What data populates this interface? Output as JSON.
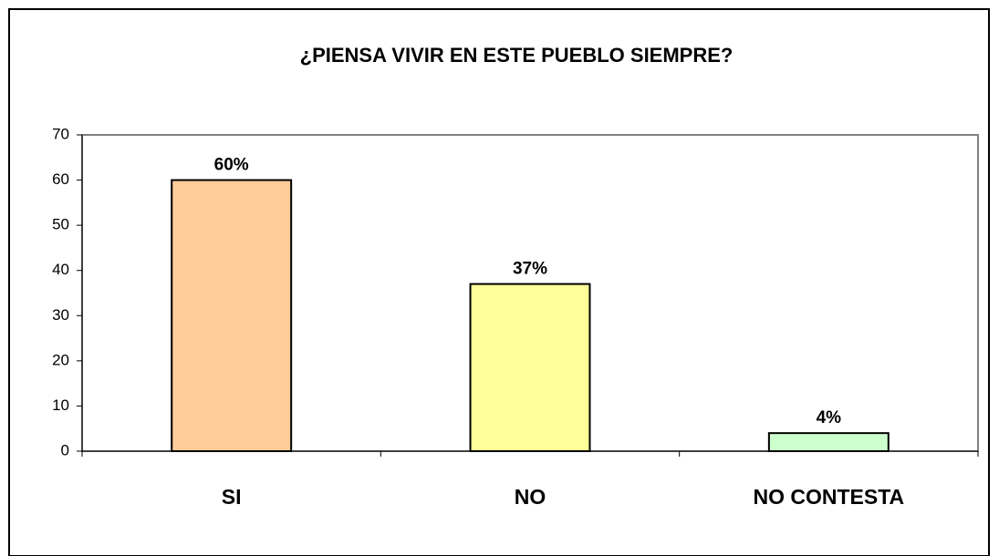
{
  "chart_data": {
    "type": "bar",
    "title": "¿PIENSA VIVIR EN ESTE PUEBLO SIEMPRE?",
    "categories": [
      "SI",
      "NO",
      "NO CONTESTA"
    ],
    "values": [
      60,
      37,
      4
    ],
    "value_labels": [
      "60%",
      "37%",
      "4%"
    ],
    "colors": [
      "#ffcc99",
      "#ffff99",
      "#ccffcc"
    ],
    "ylim": [
      0,
      70
    ],
    "yticks": [
      0,
      10,
      20,
      30,
      40,
      50,
      60,
      70
    ],
    "grid": false
  }
}
